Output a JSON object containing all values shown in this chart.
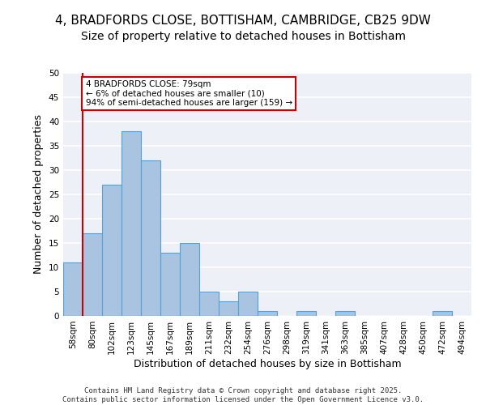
{
  "title_line1": "4, BRADFORDS CLOSE, BOTTISHAM, CAMBRIDGE, CB25 9DW",
  "title_line2": "Size of property relative to detached houses in Bottisham",
  "xlabel": "Distribution of detached houses by size in Bottisham",
  "ylabel": "Number of detached properties",
  "bins": [
    "58sqm",
    "80sqm",
    "102sqm",
    "123sqm",
    "145sqm",
    "167sqm",
    "189sqm",
    "211sqm",
    "232sqm",
    "254sqm",
    "276sqm",
    "298sqm",
    "319sqm",
    "341sqm",
    "363sqm",
    "385sqm",
    "407sqm",
    "428sqm",
    "450sqm",
    "472sqm",
    "494sqm"
  ],
  "values": [
    11,
    17,
    27,
    38,
    32,
    13,
    15,
    5,
    3,
    5,
    1,
    0,
    1,
    0,
    1,
    0,
    0,
    0,
    0,
    1,
    0
  ],
  "bar_color": "#a8c4e0",
  "bar_edge_color": "#5a9fd4",
  "vline_color": "#cc0000",
  "vline_x": 0.5,
  "annotation_text": "4 BRADFORDS CLOSE: 79sqm\n← 6% of detached houses are smaller (10)\n94% of semi-detached houses are larger (159) →",
  "annotation_box_color": "#cc0000",
  "footer_line1": "Contains HM Land Registry data © Crown copyright and database right 2025.",
  "footer_line2": "Contains public sector information licensed under the Open Government Licence v3.0.",
  "ylim": [
    0,
    50
  ],
  "yticks": [
    0,
    5,
    10,
    15,
    20,
    25,
    30,
    35,
    40,
    45,
    50
  ],
  "background_color": "#edf1f7",
  "grid_color": "#ffffff",
  "title_fontsize": 11,
  "subtitle_fontsize": 10,
  "axis_label_fontsize": 9,
  "tick_fontsize": 7.5
}
